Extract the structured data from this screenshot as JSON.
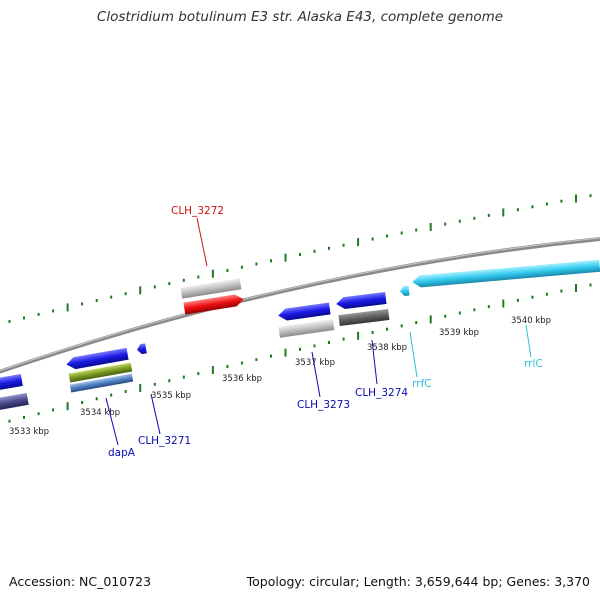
{
  "title": "Clostridium botulinum E3 str. Alaska E43, complete genome",
  "footer": {
    "accession": "Accession: NC_010723",
    "summary": "Topology: circular; Length: 3,659,644 bp; Genes: 3,370"
  },
  "colors": {
    "backbone": "#8a8a8a",
    "tick": "#1f7a1f",
    "gene_blue": "#1a1ae6",
    "gene_red": "#ee1111",
    "gene_cyan": "#33ccee",
    "gene_gray": "#bbbbbb",
    "gene_darkgray": "#666666",
    "gene_olive": "#7a9a22",
    "gene_slate": "#4a4a8a",
    "label_blue": "#0b0bb0",
    "label_red": "#cc1111",
    "label_cyan": "#33bbdd"
  },
  "kbp_ticks": [
    {
      "label": "3533 kbp"
    },
    {
      "label": "3534 kbp"
    },
    {
      "label": "3535 kbp"
    },
    {
      "label": "3536 kbp"
    },
    {
      "label": "3537 kbp"
    },
    {
      "label": "3538 kbp"
    },
    {
      "label": "3539 kbp"
    },
    {
      "label": "3540 kbp"
    }
  ],
  "gene_labels": [
    {
      "name": "CLH_3272",
      "color": "label_red"
    },
    {
      "name": "CLH_3273",
      "color": "label_blue"
    },
    {
      "name": "CLH_3274",
      "color": "label_blue"
    },
    {
      "name": "CLH_3271",
      "color": "label_blue"
    },
    {
      "name": "dapA",
      "color": "label_blue"
    },
    {
      "name": "rrfC",
      "color": "label_cyan"
    },
    {
      "name": "rrlC",
      "color": "label_cyan"
    }
  ]
}
